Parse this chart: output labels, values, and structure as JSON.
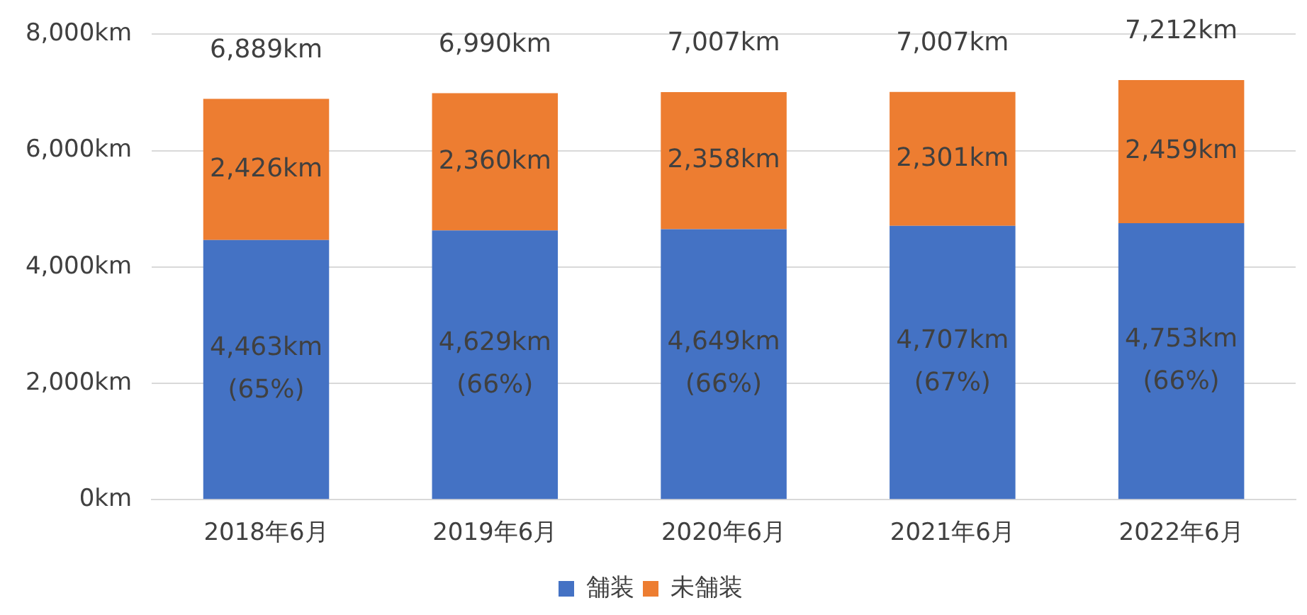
{
  "chart_data": {
    "type": "bar",
    "stacked": true,
    "categories": [
      "2018年6月",
      "2019年6月",
      "2020年6月",
      "2021年6月",
      "2022年6月"
    ],
    "series": [
      {
        "name": "舗装",
        "color": "#4472c4",
        "values": [
          4463,
          4629,
          4649,
          4707,
          4753
        ],
        "value_labels": [
          "4,463km\n(65%)",
          "4,629km\n(66%)",
          "4,649km\n(66%)",
          "4,707km\n(67%)",
          "4,753km\n(66%)"
        ]
      },
      {
        "name": "未舗装",
        "color": "#ed7d31",
        "values": [
          2426,
          2360,
          2358,
          2301,
          2459
        ],
        "value_labels": [
          "2,426km",
          "2,360km",
          "2,358km",
          "2,301km",
          "2,459km"
        ]
      }
    ],
    "totals": [
      "6,889km",
      "6,990km",
      "7,007km",
      "7,007km",
      "7,212km"
    ],
    "ylim": [
      0,
      8000
    ],
    "yticks": [
      {
        "value": 0,
        "label": "0km"
      },
      {
        "value": 2000,
        "label": "2,000km"
      },
      {
        "value": 4000,
        "label": "4,000km"
      },
      {
        "value": 6000,
        "label": "6,000km"
      },
      {
        "value": 8000,
        "label": "8,000km"
      }
    ],
    "grid": "y",
    "legend": "bottom"
  }
}
